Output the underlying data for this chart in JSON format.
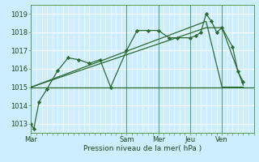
{
  "title": "",
  "xlabel": "Pression niveau de la mer( hPa )",
  "bg_color": "#cceeff",
  "grid_color": "#ffffff",
  "line_color": "#2d6a2d",
  "marker_color": "#2d6a2d",
  "ylim": [
    1012.5,
    1019.5
  ],
  "yticks": [
    1013,
    1014,
    1015,
    1016,
    1017,
    1018,
    1019
  ],
  "xlim": [
    0,
    84
  ],
  "day_labels": [
    "Mar",
    "Sam",
    "Mer",
    "Jeu",
    "Ven"
  ],
  "day_positions": [
    0,
    36,
    48,
    60,
    72
  ],
  "line1_x": [
    0,
    1,
    3,
    6,
    10,
    14,
    18,
    22,
    26,
    30,
    36,
    40,
    44,
    48,
    52,
    55,
    60,
    62,
    64,
    66,
    68,
    70,
    72,
    76,
    78,
    80
  ],
  "line1_y": [
    1013.0,
    1012.7,
    1014.2,
    1014.9,
    1015.9,
    1016.6,
    1016.5,
    1016.3,
    1016.5,
    1015.0,
    1017.0,
    1018.1,
    1018.1,
    1018.1,
    1017.7,
    1017.7,
    1017.7,
    1017.8,
    1018.0,
    1019.0,
    1018.6,
    1018.0,
    1018.25,
    1017.2,
    1015.85,
    1015.3
  ],
  "line2_x": [
    0,
    84
  ],
  "line2_y": [
    1015.0,
    1015.0
  ],
  "line3_x": [
    0,
    66,
    72,
    80
  ],
  "line3_y": [
    1015.0,
    1018.6,
    1015.0,
    1015.0
  ],
  "line4_x": [
    0,
    66,
    72,
    80
  ],
  "line4_y": [
    1015.0,
    1018.25,
    1018.25,
    1015.1
  ],
  "vline_x": [
    0,
    36,
    48,
    60,
    72
  ]
}
